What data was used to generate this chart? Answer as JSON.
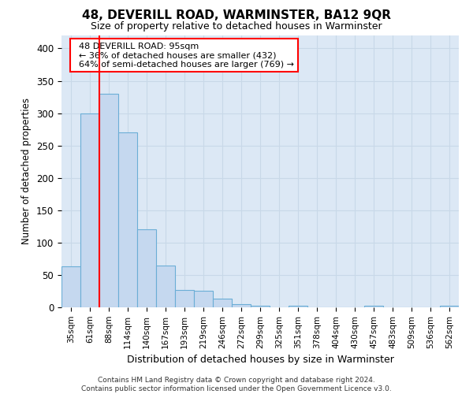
{
  "title": "48, DEVERILL ROAD, WARMINSTER, BA12 9QR",
  "subtitle": "Size of property relative to detached houses in Warminster",
  "xlabel": "Distribution of detached houses by size in Warminster",
  "ylabel": "Number of detached properties",
  "bar_labels": [
    "35sqm",
    "61sqm",
    "88sqm",
    "114sqm",
    "140sqm",
    "167sqm",
    "193sqm",
    "219sqm",
    "246sqm",
    "272sqm",
    "299sqm",
    "325sqm",
    "351sqm",
    "378sqm",
    "404sqm",
    "430sqm",
    "457sqm",
    "483sqm",
    "509sqm",
    "536sqm",
    "562sqm"
  ],
  "bar_values": [
    63,
    300,
    330,
    270,
    120,
    65,
    27,
    25,
    13,
    5,
    2,
    0,
    2,
    0,
    0,
    0,
    2,
    0,
    0,
    0,
    2
  ],
  "bar_color": "#c5d8ef",
  "bar_edge_color": "#6baed6",
  "bg_color": "#dce8f5",
  "fig_bg_color": "#ffffff",
  "grid_color": "#c8d8e8",
  "red_line_x": 1.5,
  "property_label": "48 DEVERILL ROAD: 95sqm",
  "smaller_text": "← 36% of detached houses are smaller (432)",
  "larger_text": "64% of semi-detached houses are larger (769) →",
  "ylim": [
    0,
    420
  ],
  "yticks": [
    0,
    50,
    100,
    150,
    200,
    250,
    300,
    350,
    400
  ],
  "footnote1": "Contains HM Land Registry data © Crown copyright and database right 2024.",
  "footnote2": "Contains public sector information licensed under the Open Government Licence v3.0."
}
